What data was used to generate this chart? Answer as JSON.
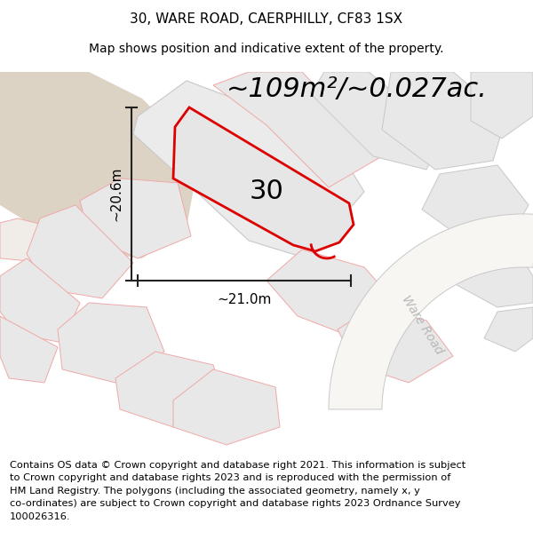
{
  "title_line1": "30, WARE ROAD, CAERPHILLY, CF83 1SX",
  "title_line2": "Map shows position and indicative extent of the property.",
  "area_label": "~109m²/~0.027ac.",
  "width_label": "~21.0m",
  "height_label": "~20.6m",
  "plot_number": "30",
  "road_label": "Ware Road",
  "footer_text": "Contains OS data © Crown copyright and database right 2021. This information is subject\nto Crown copyright and database rights 2023 and is reproduced with the permission of\nHM Land Registry. The polygons (including the associated geometry, namely x, y\nco-ordinates) are subject to Crown copyright and database rights 2023 Ordnance Survey\n100026316.",
  "white_bg": "#ffffff",
  "map_bg": "#f8f6f3",
  "tan_fill": "#ddd3c4",
  "tan_fill2": "#e8e0d5",
  "plot_fill": "#e6e6e6",
  "plot_edge_color": "#dd0000",
  "neighbor_fill": "#e8e8e8",
  "neighbor_edge_gray": "#c8c8c8",
  "neighbor_edge_pink": "#f0a8a8",
  "dim_line_color": "#222222",
  "road_label_color": "#b8b8b8",
  "title_fontsize": 11,
  "subtitle_fontsize": 10,
  "area_fontsize": 22,
  "footer_fontsize": 8.2
}
